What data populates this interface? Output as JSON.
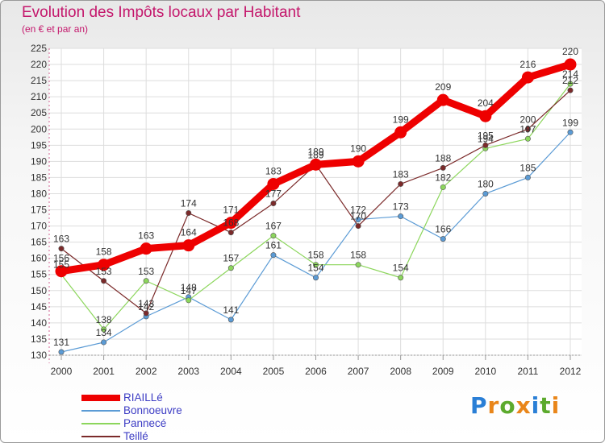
{
  "title": "Evolution des Impôts locaux par Habitant",
  "subtitle": "(en € et par an)",
  "logo": {
    "text": "Proxiti",
    "letters": [
      "P",
      "r",
      "o",
      "x",
      "i",
      "t",
      "i"
    ],
    "colors": [
      "#2a7fd6",
      "#e9861a",
      "#5caa2d",
      "#e9861a",
      "#2a7fd6",
      "#5caa2d",
      "#e9861a"
    ]
  },
  "chart_data": {
    "type": "line",
    "title": "Evolution des Impôts locaux par Habitant",
    "subtitle": "(en € et par an)",
    "xlabel": "",
    "ylabel": "",
    "x": [
      "2000",
      "2001",
      "2002",
      "2003",
      "2004",
      "2005",
      "2006",
      "2007",
      "2008",
      "2009",
      "2010",
      "2011",
      "2012"
    ],
    "ylim": [
      130,
      225
    ],
    "yticks": [
      130,
      135,
      140,
      145,
      150,
      155,
      160,
      165,
      170,
      175,
      180,
      185,
      190,
      195,
      200,
      205,
      210,
      215,
      220,
      225
    ],
    "grid": true,
    "legend_position": "bottom-left",
    "series": [
      {
        "name": "RIAILLé",
        "color": "#ee0000",
        "values": [
          156,
          158,
          163,
          164,
          171,
          183,
          189,
          190,
          199,
          209,
          204,
          216,
          220
        ]
      },
      {
        "name": "Bonnoeuvre",
        "color": "#5b9bd5",
        "values": [
          131,
          134,
          142,
          148,
          141,
          161,
          154,
          172,
          173,
          166,
          180,
          185,
          199
        ]
      },
      {
        "name": "Pannecé",
        "color": "#8cd65c",
        "values": [
          155,
          138,
          153,
          147,
          157,
          167,
          158,
          158,
          154,
          182,
          194,
          197,
          214
        ]
      },
      {
        "name": "Teillé",
        "color": "#7b2a2a",
        "values": [
          163,
          153,
          143,
          174,
          168,
          177,
          189,
          170,
          183,
          188,
          195,
          200,
          212
        ]
      }
    ]
  }
}
